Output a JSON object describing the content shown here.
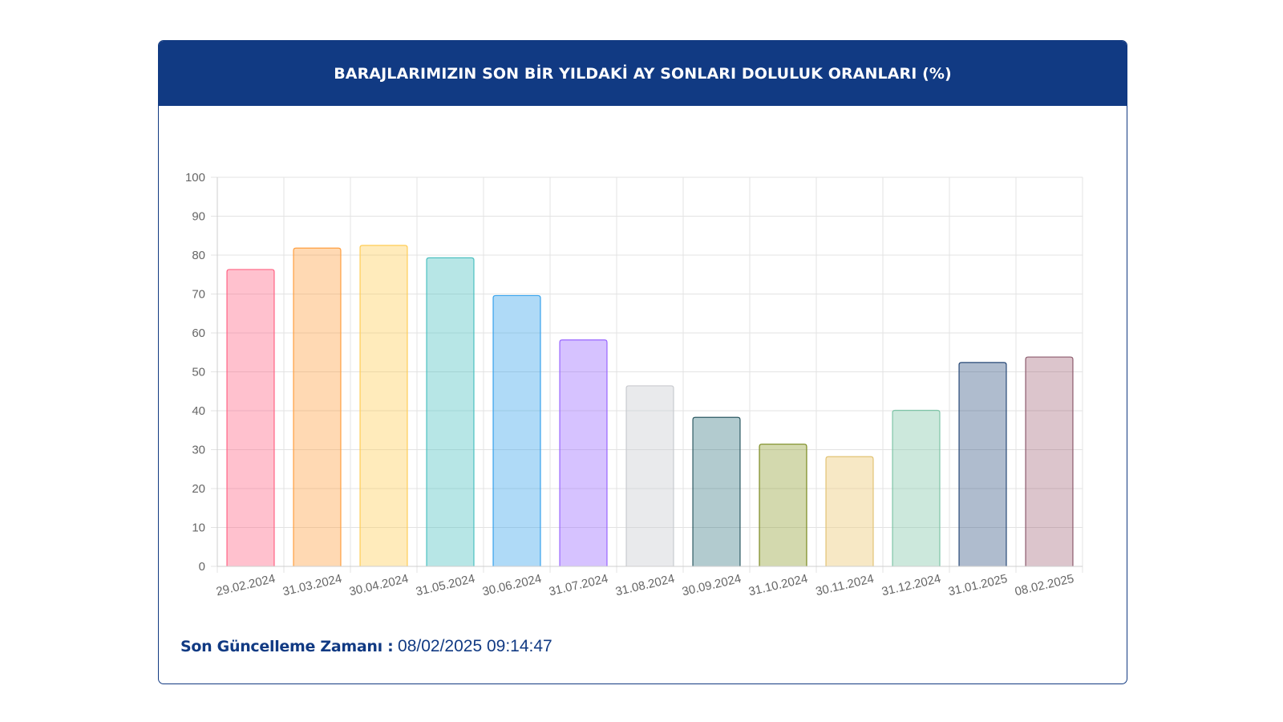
{
  "header": {
    "title": "BARAJLARIMIZIN SON BİR YILDAKİ AY SONLARI DOLULUK ORANLARI (%)"
  },
  "footer": {
    "label": "Son Güncelleme Zamanı :",
    "value": "08/02/2025 09:14:47"
  },
  "colors": {
    "header_bg": "#113a83",
    "text_primary": "#113a83",
    "grid": "#e3e3e3",
    "tick_text": "#666666"
  },
  "chart_data": {
    "type": "bar",
    "title": "BARAJLARIMIZIN SON BİR YILDAKİ AY SONLARI DOLULUK ORANLARI (%)",
    "xlabel": "",
    "ylabel": "",
    "ylim": [
      0,
      100
    ],
    "yticks": [
      0,
      10,
      20,
      30,
      40,
      50,
      60,
      70,
      80,
      90,
      100
    ],
    "grid": true,
    "legend": "none",
    "categories": [
      "29.02.2024",
      "31.03.2024",
      "30.04.2024",
      "31.05.2024",
      "30.06.2024",
      "31.07.2024",
      "31.08.2024",
      "30.09.2024",
      "31.10.2024",
      "30.11.2024",
      "31.12.2024",
      "31.01.2025",
      "08.02.2025"
    ],
    "values": [
      76.3,
      81.8,
      82.5,
      79.3,
      69.6,
      58.2,
      46.4,
      38.3,
      31.4,
      28.2,
      40.1,
      52.4,
      53.8
    ],
    "bar_fills": [
      "rgba(255,99,132,0.4)",
      "rgba(255,159,64,0.4)",
      "rgba(255,205,86,0.4)",
      "rgba(75,192,192,0.4)",
      "rgba(54,162,235,0.4)",
      "rgba(153,102,255,0.4)",
      "rgba(201,203,207,0.4)",
      "rgba(0,84,96,0.3)",
      "rgba(128,145,22,0.35)",
      "rgba(237,205,126,0.45)",
      "rgba(127,197,168,0.4)",
      "rgba(34,68,118,0.36)",
      "rgba(128,47,72,0.28)"
    ],
    "bar_strokes": [
      "#ff6384",
      "#ff9f40",
      "#ffcd56",
      "#4bc0c0",
      "#36a2eb",
      "#9966ff",
      "#c9cbcf",
      "#2d5a63",
      "#7a8a1f",
      "#e2c374",
      "#7fc5a8",
      "#274876",
      "#8c5a6c"
    ]
  }
}
